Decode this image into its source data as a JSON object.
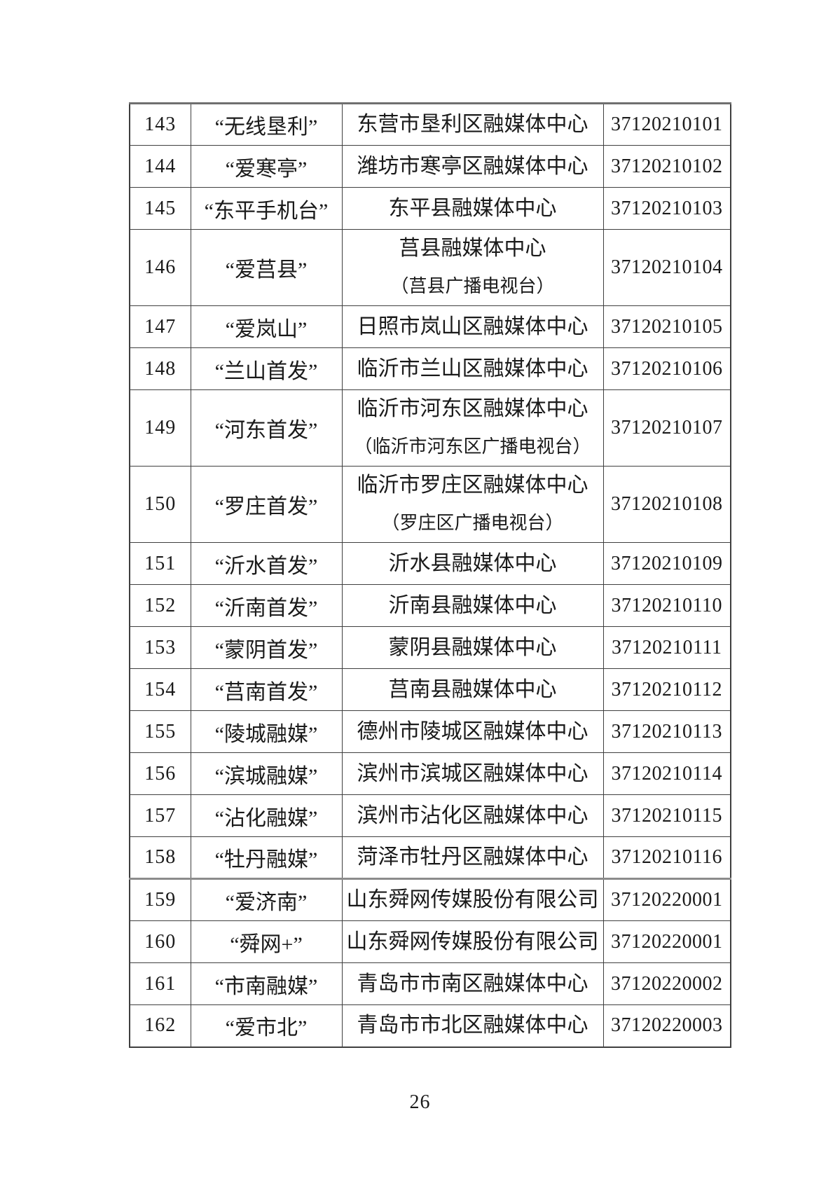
{
  "page": {
    "number_label": "26"
  },
  "colors": {
    "text": "#1a1a1a",
    "table_border": "#3f3f3f",
    "table_top_border": "#6f6f6f",
    "thick_row_divider": "#8c8c8c",
    "background": "#ffffff"
  },
  "table": {
    "rows": [
      {
        "index": "143",
        "name": "“无线垦利”",
        "org_lines": [
          "东营市垦利区融媒体中心"
        ],
        "license": "37120210101",
        "divider_below": "normal"
      },
      {
        "index": "144",
        "name": "“爱寒亭”",
        "org_lines": [
          "潍坊市寒亭区融媒体中心"
        ],
        "license": "37120210102",
        "divider_below": "normal"
      },
      {
        "index": "145",
        "name": "“东平手机台”",
        "org_lines": [
          "东平县融媒体中心"
        ],
        "license": "37120210103",
        "divider_below": "normal"
      },
      {
        "index": "146",
        "name": "“爱莒县”",
        "org_lines": [
          "莒县融媒体中心",
          "（莒县广播电视台）"
        ],
        "license": "37120210104",
        "divider_below": "normal"
      },
      {
        "index": "147",
        "name": "“爱岚山”",
        "org_lines": [
          "日照市岚山区融媒体中心"
        ],
        "license": "37120210105",
        "divider_below": "normal"
      },
      {
        "index": "148",
        "name": "“兰山首发”",
        "org_lines": [
          "临沂市兰山区融媒体中心"
        ],
        "license": "37120210106",
        "divider_below": "normal"
      },
      {
        "index": "149",
        "name": "“河东首发”",
        "org_lines": [
          "临沂市河东区融媒体中心",
          "（临沂市河东区广播电视台）"
        ],
        "license": "37120210107",
        "divider_below": "normal"
      },
      {
        "index": "150",
        "name": "“罗庄首发”",
        "org_lines": [
          "临沂市罗庄区融媒体中心",
          "（罗庄区广播电视台）"
        ],
        "license": "37120210108",
        "divider_below": "normal"
      },
      {
        "index": "151",
        "name": "“沂水首发”",
        "org_lines": [
          "沂水县融媒体中心"
        ],
        "license": "37120210109",
        "divider_below": "normal"
      },
      {
        "index": "152",
        "name": "“沂南首发”",
        "org_lines": [
          "沂南县融媒体中心"
        ],
        "license": "37120210110",
        "divider_below": "normal"
      },
      {
        "index": "153",
        "name": "“蒙阴首发”",
        "org_lines": [
          "蒙阴县融媒体中心"
        ],
        "license": "37120210111",
        "divider_below": "normal"
      },
      {
        "index": "154",
        "name": "“莒南首发”",
        "org_lines": [
          "莒南县融媒体中心"
        ],
        "license": "37120210112",
        "divider_below": "normal"
      },
      {
        "index": "155",
        "name": "“陵城融媒”",
        "org_lines": [
          "德州市陵城区融媒体中心"
        ],
        "license": "37120210113",
        "divider_below": "normal"
      },
      {
        "index": "156",
        "name": "“滨城融媒”",
        "org_lines": [
          "滨州市滨城区融媒体中心"
        ],
        "license": "37120210114",
        "divider_below": "normal"
      },
      {
        "index": "157",
        "name": "“沾化融媒”",
        "org_lines": [
          "滨州市沾化区融媒体中心"
        ],
        "license": "37120210115",
        "divider_below": "normal"
      },
      {
        "index": "158",
        "name": "“牡丹融媒”",
        "org_lines": [
          "菏泽市牡丹区融媒体中心"
        ],
        "license": "37120210116",
        "divider_below": "thick"
      },
      {
        "index": "159",
        "name": "“爱济南”",
        "org_lines": [
          "山东舜网传媒股份有限公司"
        ],
        "license": "37120220001",
        "divider_below": "normal"
      },
      {
        "index": "160",
        "name": "“舜网+”",
        "org_lines": [
          "山东舜网传媒股份有限公司"
        ],
        "license": "37120220001",
        "divider_below": "normal"
      },
      {
        "index": "161",
        "name": "“市南融媒”",
        "org_lines": [
          "青岛市市南区融媒体中心"
        ],
        "license": "37120220002",
        "divider_below": "normal"
      },
      {
        "index": "162",
        "name": "“爱市北”",
        "org_lines": [
          "青岛市市北区融媒体中心"
        ],
        "license": "37120220003",
        "divider_below": "normal"
      }
    ]
  }
}
